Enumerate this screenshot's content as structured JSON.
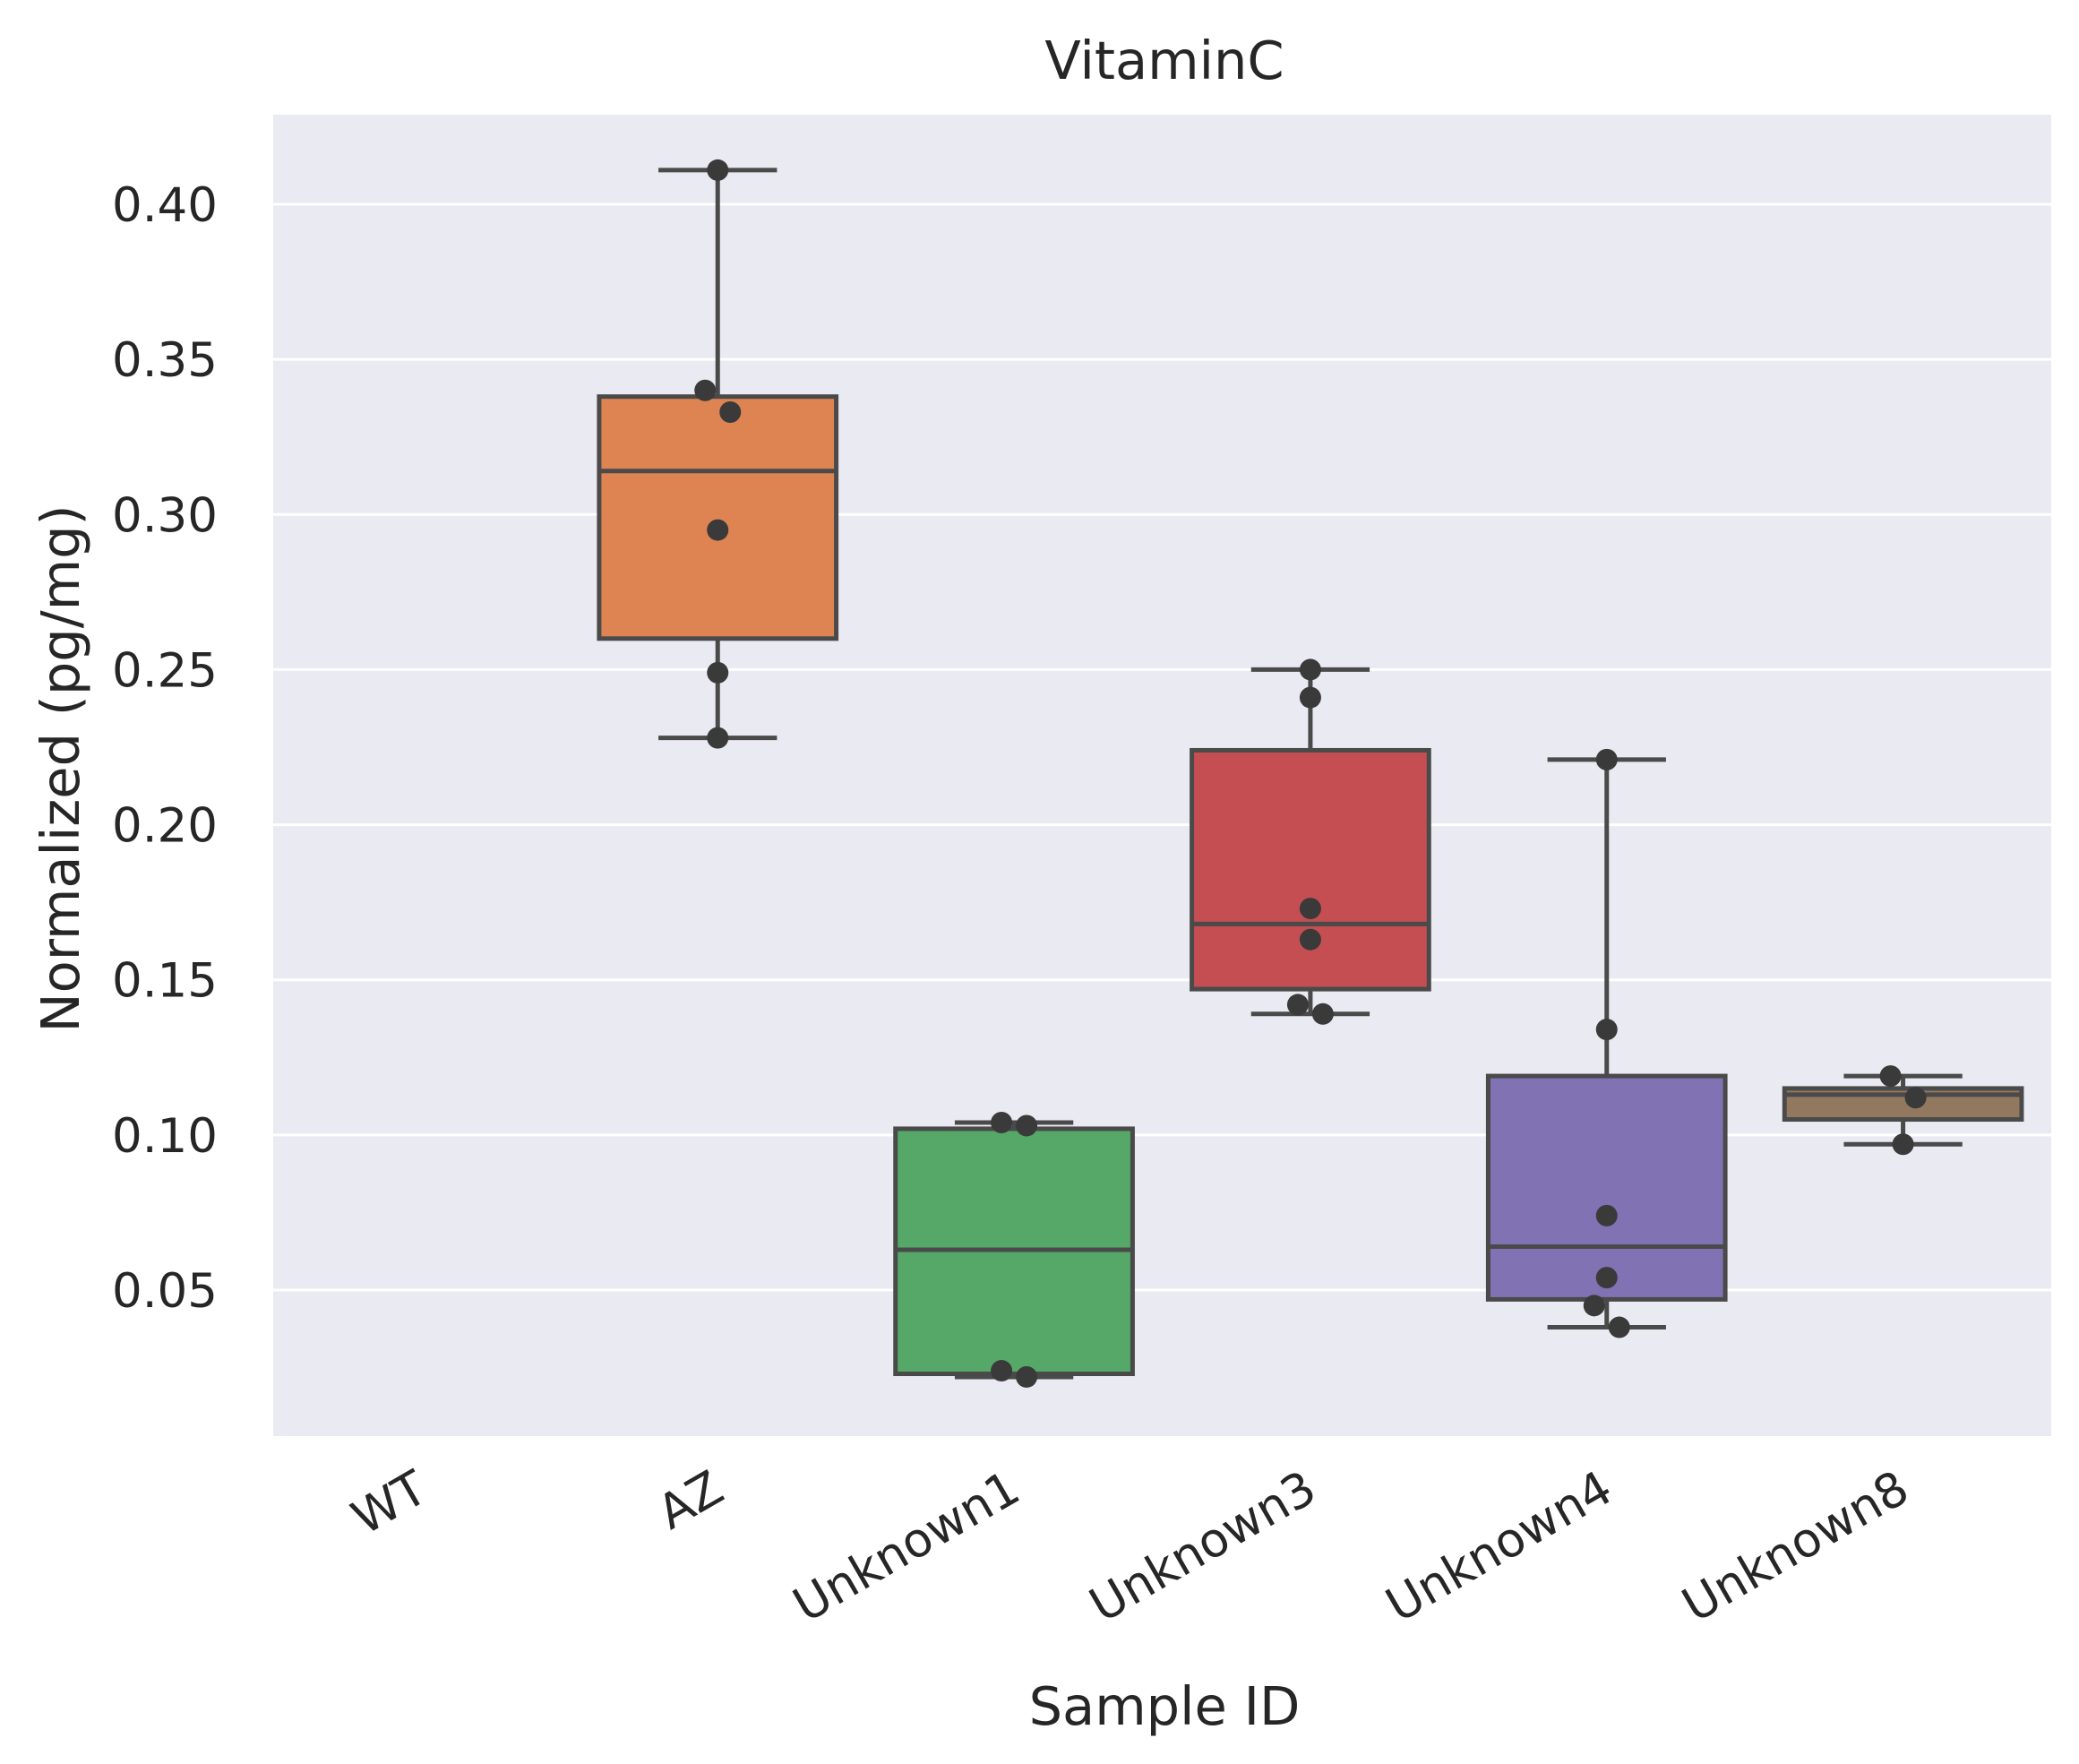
{
  "chart_data": {
    "type": "box",
    "title": "VitaminC",
    "xlabel": "Sample ID",
    "ylabel": "Normalized (pg/mg)",
    "ylim": [
      0.0,
      0.43
    ],
    "yticks": [
      "0.05",
      "0.10",
      "0.15",
      "0.20",
      "0.25",
      "0.30",
      "0.35",
      "0.40"
    ],
    "grid": true,
    "background": "#eaeaf2",
    "box_edge_color": "#4a4a4a",
    "point_color": "#3a3a3a",
    "categories": [
      "WT",
      "AZ",
      "Unknown1",
      "Unknown3",
      "Unknown4",
      "Unknown8"
    ],
    "boxes": [
      {
        "category": "WT",
        "color": "#4c72b0",
        "stats": null,
        "points": []
      },
      {
        "category": "AZ",
        "color": "#dd8452",
        "stats": {
          "whislo": 0.228,
          "q1": 0.26,
          "med": 0.314,
          "q3": 0.338,
          "whishi": 0.411
        },
        "points": [
          0.411,
          0.34,
          0.333,
          0.295,
          0.249,
          0.228
        ]
      },
      {
        "category": "Unknown1",
        "color": "#55a868",
        "stats": {
          "whislo": 0.022,
          "q1": 0.023,
          "med": 0.063,
          "q3": 0.102,
          "whishi": 0.104
        },
        "points": [
          0.104,
          0.103,
          0.024,
          0.022
        ]
      },
      {
        "category": "Unknown3",
        "color": "#c44e52",
        "stats": {
          "whislo": 0.139,
          "q1": 0.147,
          "med": 0.168,
          "q3": 0.224,
          "whishi": 0.25
        },
        "points": [
          0.25,
          0.241,
          0.173,
          0.163,
          0.142,
          0.139
        ]
      },
      {
        "category": "Unknown4",
        "color": "#8172b3",
        "stats": {
          "whislo": 0.038,
          "q1": 0.047,
          "med": 0.064,
          "q3": 0.119,
          "whishi": 0.221
        },
        "points": [
          0.221,
          0.134,
          0.074,
          0.054,
          0.045,
          0.038
        ]
      },
      {
        "category": "Unknown8",
        "color": "#937860",
        "stats": {
          "whislo": 0.097,
          "q1": 0.105,
          "med": 0.113,
          "q3": 0.115,
          "whishi": 0.119
        },
        "points": [
          0.119,
          0.112,
          0.097
        ]
      }
    ]
  }
}
